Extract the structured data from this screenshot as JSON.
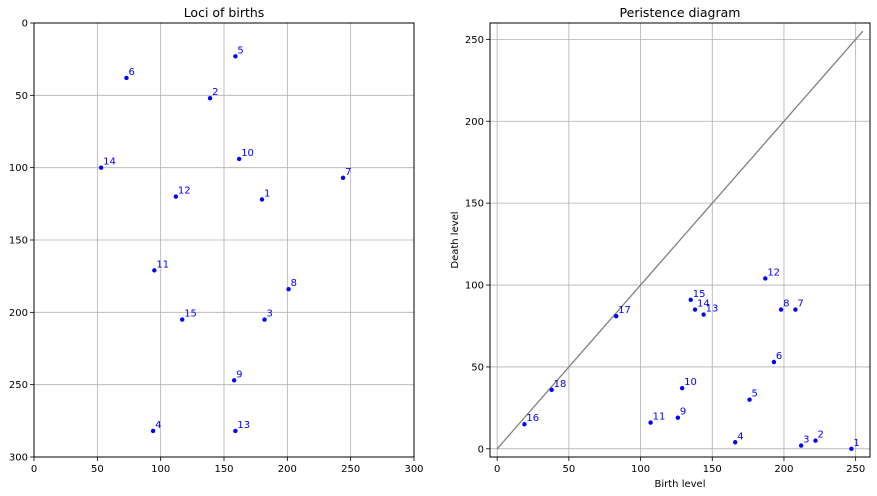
{
  "chart_data": [
    {
      "type": "scatter",
      "title": "Loci of births",
      "xlabel": "",
      "ylabel": "",
      "xlim": [
        0,
        300
      ],
      "ylim": [
        300,
        0
      ],
      "y_inverted": true,
      "grid": true,
      "xticks": [
        0,
        50,
        100,
        150,
        200,
        250,
        300
      ],
      "yticks": [
        0,
        50,
        100,
        150,
        200,
        250,
        300
      ],
      "point_color": "#0000ff",
      "points": [
        {
          "label": "1",
          "x": 180,
          "y": 122
        },
        {
          "label": "2",
          "x": 139,
          "y": 52
        },
        {
          "label": "3",
          "x": 182,
          "y": 205
        },
        {
          "label": "4",
          "x": 94,
          "y": 282
        },
        {
          "label": "5",
          "x": 159,
          "y": 23
        },
        {
          "label": "6",
          "x": 73,
          "y": 38
        },
        {
          "label": "7",
          "x": 244,
          "y": 107
        },
        {
          "label": "8",
          "x": 201,
          "y": 184
        },
        {
          "label": "9",
          "x": 158,
          "y": 247
        },
        {
          "label": "10",
          "x": 162,
          "y": 94
        },
        {
          "label": "11",
          "x": 95,
          "y": 171
        },
        {
          "label": "12",
          "x": 112,
          "y": 120
        },
        {
          "label": "13",
          "x": 159,
          "y": 282
        },
        {
          "label": "14",
          "x": 53,
          "y": 100
        },
        {
          "label": "15",
          "x": 117,
          "y": 205
        }
      ]
    },
    {
      "type": "scatter",
      "title": "Peristence diagram",
      "xlabel": "Birth level",
      "ylabel": "Death level",
      "xlim": [
        -5,
        260
      ],
      "ylim": [
        -5,
        260
      ],
      "grid": true,
      "xticks": [
        0,
        50,
        100,
        150,
        200,
        250
      ],
      "yticks": [
        0,
        50,
        100,
        150,
        200,
        250
      ],
      "diagonal": true,
      "diagonal_color": "#808080",
      "point_color": "#0000ff",
      "points": [
        {
          "label": "1",
          "x": 247,
          "y": 0
        },
        {
          "label": "2",
          "x": 222,
          "y": 5
        },
        {
          "label": "3",
          "x": 212,
          "y": 2
        },
        {
          "label": "4",
          "x": 166,
          "y": 4
        },
        {
          "label": "5",
          "x": 176,
          "y": 30
        },
        {
          "label": "6",
          "x": 193,
          "y": 53
        },
        {
          "label": "7",
          "x": 208,
          "y": 85
        },
        {
          "label": "8",
          "x": 198,
          "y": 85
        },
        {
          "label": "9",
          "x": 126,
          "y": 19
        },
        {
          "label": "10",
          "x": 129,
          "y": 37
        },
        {
          "label": "11",
          "x": 107,
          "y": 16
        },
        {
          "label": "12",
          "x": 187,
          "y": 104
        },
        {
          "label": "13",
          "x": 144,
          "y": 82
        },
        {
          "label": "14",
          "x": 138,
          "y": 85
        },
        {
          "label": "15",
          "x": 135,
          "y": 91
        },
        {
          "label": "16",
          "x": 19,
          "y": 15
        },
        {
          "label": "17",
          "x": 83,
          "y": 81
        },
        {
          "label": "18",
          "x": 38,
          "y": 36
        }
      ]
    }
  ]
}
